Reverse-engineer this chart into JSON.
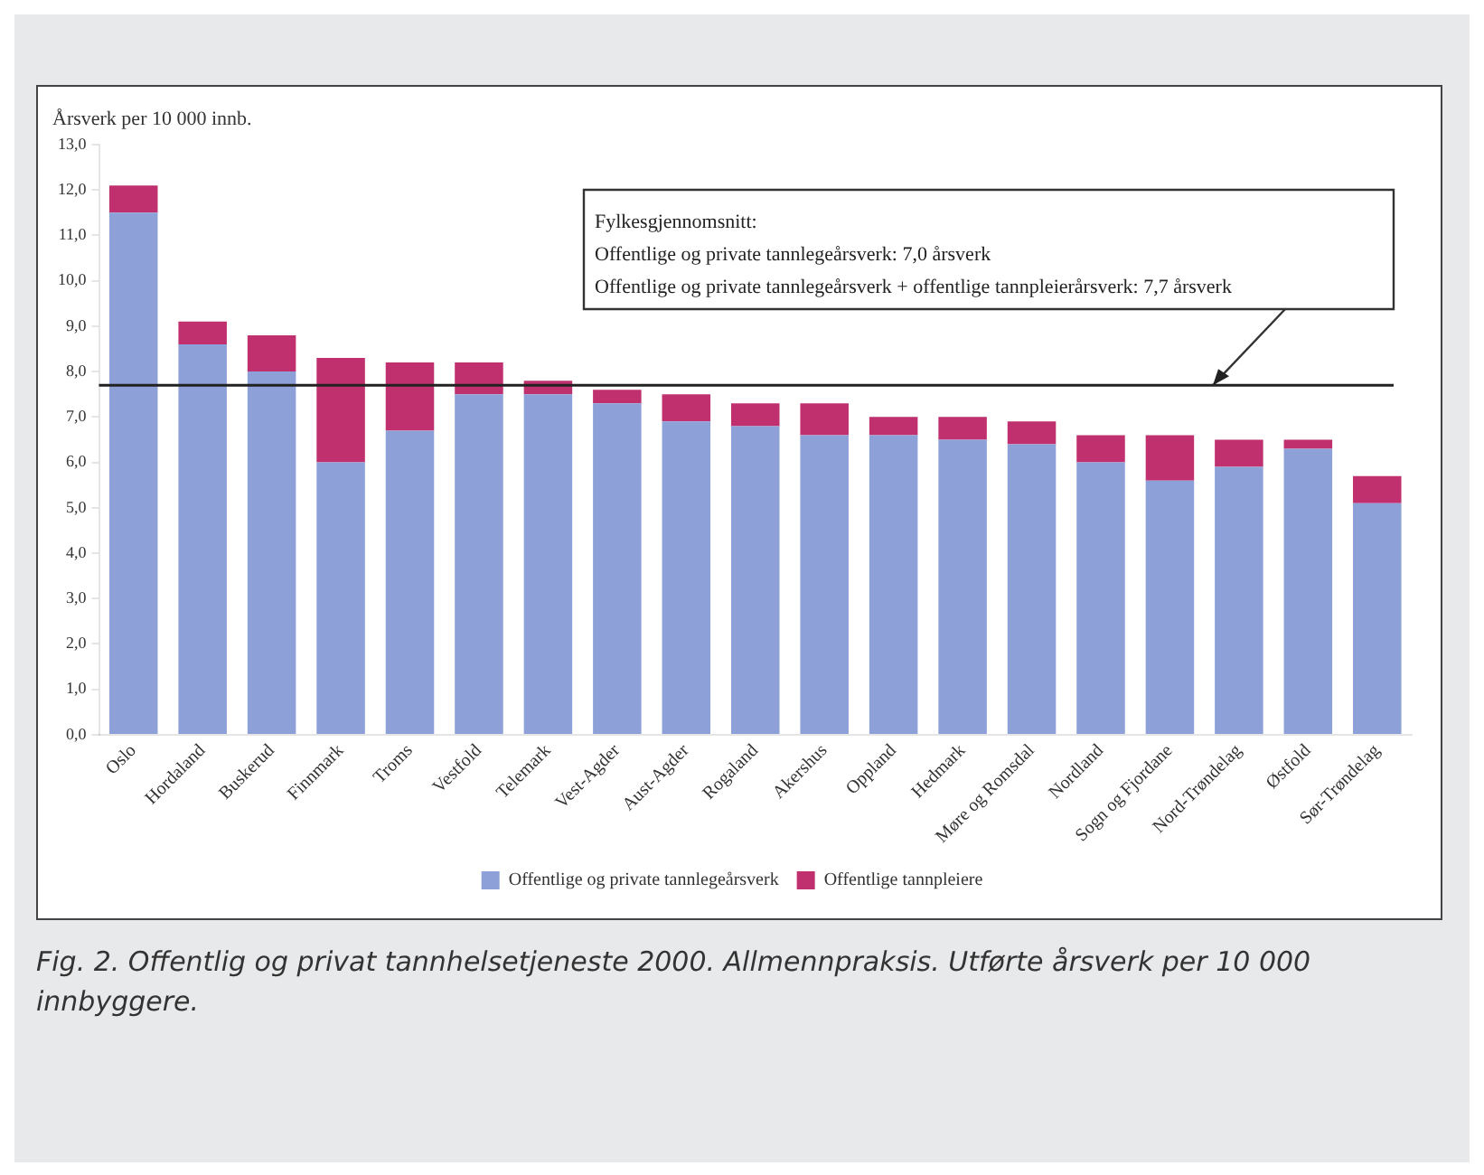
{
  "chart_data": {
    "type": "bar",
    "stacked": true,
    "title": "Fig. 2. Offentlig og privat tannhelsetjeneste 2000. Allmennpraksis. Utførte årsverk per 10 000 innbyggere.",
    "ylabel": "Årsverk per 10 000 innb.",
    "categories": [
      "Oslo",
      "Hordaland",
      "Buskerud",
      "Finnmark",
      "Troms",
      "Vestfold",
      "Telemark",
      "Vest-Agder",
      "Aust-Agder",
      "Rogaland",
      "Akershus",
      "Oppland",
      "Hedmark",
      "Møre og Romsdal",
      "Nordland",
      "Sogn og Fjordane",
      "Nord-Trøndelag",
      "Østfold",
      "Sør-Trøndelag"
    ],
    "series": [
      {
        "name": "Offentlige og private tannlegeårsverk",
        "color": "#8da0d8",
        "values": [
          11.5,
          8.6,
          8.0,
          6.0,
          6.7,
          7.5,
          7.5,
          7.3,
          6.9,
          6.8,
          6.6,
          6.6,
          6.5,
          6.4,
          6.0,
          5.6,
          5.9,
          6.3,
          5.1
        ]
      },
      {
        "name": "Offentlige tannpleiere",
        "color": "#c0306e",
        "values": [
          0.6,
          0.5,
          0.8,
          2.3,
          1.5,
          0.7,
          0.3,
          0.3,
          0.6,
          0.5,
          0.7,
          0.4,
          0.5,
          0.5,
          0.6,
          1.0,
          0.6,
          0.2,
          0.6
        ]
      }
    ],
    "ylim": [
      0,
      13
    ],
    "yticks": [
      {
        "value": 0,
        "label": "0,0"
      },
      {
        "value": 1,
        "label": "1,0"
      },
      {
        "value": 2,
        "label": "2,0"
      },
      {
        "value": 3,
        "label": "3,0"
      },
      {
        "value": 4,
        "label": "4,0"
      },
      {
        "value": 5,
        "label": "5,0"
      },
      {
        "value": 6,
        "label": "6,0"
      },
      {
        "value": 7,
        "label": "7,0"
      },
      {
        "value": 8,
        "label": "8,0"
      },
      {
        "value": 9,
        "label": "9,0"
      },
      {
        "value": 10,
        "label": "10,0"
      },
      {
        "value": 11,
        "label": "11,0"
      },
      {
        "value": 12,
        "label": "12,0"
      },
      {
        "value": 13,
        "label": "13,0"
      }
    ],
    "ref_lines": [
      {
        "axis": "y",
        "value": 7.7,
        "color": "#222222"
      }
    ],
    "annotations": [
      "Fylkesgjennomsnitt:",
      "Offentlige og private tannlegeårsverk: 7,0 årsverk",
      "Offentlige og private tannlegeårsverk + offentlige tannpleierårsverk: 7,7 årsverk"
    ],
    "grid": false,
    "legend": "bottom"
  }
}
